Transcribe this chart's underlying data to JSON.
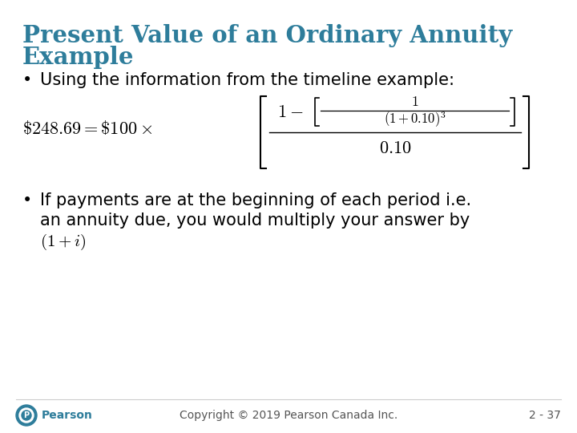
{
  "title_line1": "Present Value of an Ordinary Annuity",
  "title_line2": "Example",
  "title_color": "#2E7D9B",
  "bullet1": "Using the information from the timeline example:",
  "bullet2_line1": "If payments are at the beginning of each period i.e.",
  "bullet2_line2": "an annuity due, you would multiply your answer by",
  "bullet2_line3": "(1 + i)",
  "copyright": "Copyright © 2019 Pearson Canada Inc.",
  "slide_number": "2 - 37",
  "bg_color": "#ffffff",
  "text_color": "#000000",
  "footer_color": "#555555",
  "body_fontsize": 15,
  "title_fontsize": 21,
  "formula_fontsize": 16,
  "inner_fontsize": 13
}
